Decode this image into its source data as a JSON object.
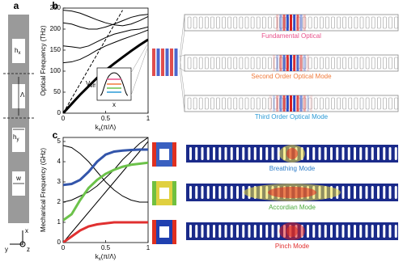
{
  "panels": {
    "a": {
      "letter": "a",
      "hx": {
        "main": "h",
        "sub": "x"
      },
      "lambda": "Λ",
      "hy": {
        "main": "h",
        "sub": "y"
      },
      "w": "w",
      "axes": {
        "x": "x",
        "y": "y",
        "z": "z"
      }
    }
  },
  "chart_data": [
    {
      "type": "line",
      "letter": "b",
      "y_label": "Optical Frequency (THz)",
      "x_label": {
        "main": "k",
        "sub": "x",
        "rest": "(π/Λ)"
      },
      "x": [
        0,
        0.1,
        0.2,
        0.3,
        0.4,
        0.5,
        0.6,
        0.7,
        0.8,
        0.9,
        1
      ],
      "series": [
        {
          "color": "#000000",
          "width": 3,
          "values": [
            0,
            22,
            44,
            64,
            84,
            102,
            118,
            133,
            148,
            162,
            175
          ]
        },
        {
          "color": "#000000",
          "width": 1,
          "values": [
            120,
            122,
            128,
            138,
            150,
            160,
            168,
            176,
            183,
            190,
            198
          ]
        },
        {
          "color": "#000000",
          "width": 1,
          "values": [
            160,
            158,
            155,
            160,
            170,
            180,
            188,
            193,
            198,
            200,
            205
          ]
        },
        {
          "color": "#000000",
          "width": 1,
          "values": [
            215,
            212,
            205,
            200,
            200,
            205,
            212,
            220,
            228,
            233,
            235
          ]
        },
        {
          "color": "#000000",
          "width": 1,
          "values": [
            245,
            243,
            238,
            230,
            222,
            215,
            210,
            208,
            212,
            220,
            230
          ]
        },
        {
          "color": "#000000",
          "width": 1,
          "dashed": true,
          "values": [
            0,
            35,
            70,
            105,
            140,
            175,
            210,
            245,
            null,
            null,
            null
          ]
        }
      ],
      "xlim": [
        0,
        1
      ],
      "ylim": [
        0,
        250
      ],
      "xticks": [
        0,
        0.5,
        1
      ],
      "yticks": [
        0,
        50,
        100,
        150,
        200,
        250
      ],
      "inset": {
        "y_label": {
          "main": "V",
          "sub": "eff"
        },
        "x_label": "x"
      },
      "modes": [
        {
          "label": "Fundamental Optical",
          "color": "#e8508a"
        },
        {
          "label": "Second Order Optical Mode",
          "color": "#f07a3a"
        },
        {
          "label": "Third Order Optical Mode",
          "color": "#2a9ad6"
        }
      ]
    },
    {
      "type": "line",
      "letter": "c",
      "y_label": "Mechanical Frequency (GHz)",
      "x_label": {
        "main": "k",
        "sub": "x",
        "rest": "(π/Λ)"
      },
      "x": [
        0,
        0.1,
        0.2,
        0.3,
        0.4,
        0.5,
        0.6,
        0.7,
        0.8,
        0.9,
        1
      ],
      "series": [
        {
          "color": "#000000",
          "width": 1,
          "values": [
            0,
            0.5,
            1.0,
            1.5,
            2.0,
            2.5,
            3.0,
            3.5,
            4.0,
            4.5,
            5.0
          ]
        },
        {
          "color": "#000000",
          "width": 1,
          "values": [
            4.8,
            4.7,
            4.4,
            4.0,
            3.5,
            3.0,
            2.6,
            2.3,
            2.1,
            2.0,
            2.0
          ]
        },
        {
          "color": "#000000",
          "width": 1,
          "values": [
            2.0,
            2.1,
            2.3,
            2.5,
            2.8,
            3.2,
            3.6,
            4.1,
            4.5,
            4.9,
            5.2
          ]
        },
        {
          "color": "#3355aa",
          "width": 3,
          "values": [
            2.85,
            2.9,
            3.1,
            3.5,
            4.0,
            4.35,
            4.5,
            4.55,
            4.58,
            4.6,
            4.6
          ]
        },
        {
          "color": "#6cc24a",
          "width": 3,
          "values": [
            1.1,
            1.4,
            2.1,
            2.7,
            3.1,
            3.4,
            3.6,
            3.75,
            3.85,
            3.9,
            3.95
          ]
        },
        {
          "color": "#e03030",
          "width": 3,
          "values": [
            0,
            0.3,
            0.6,
            0.8,
            0.9,
            0.95,
            1.0,
            1.0,
            1.0,
            1.0,
            1.0
          ]
        }
      ],
      "xlim": [
        0,
        1
      ],
      "ylim": [
        0,
        5.2
      ],
      "xticks": [
        0,
        0.5,
        1
      ],
      "yticks": [
        0,
        1,
        2,
        3,
        4,
        5
      ],
      "modes": [
        {
          "label": "Breathing Mode",
          "color": "#2a7ac8"
        },
        {
          "label": "Accordian Mode",
          "color": "#4aaa3a"
        },
        {
          "label": "Pinch Mode",
          "color": "#e03030"
        }
      ]
    }
  ]
}
